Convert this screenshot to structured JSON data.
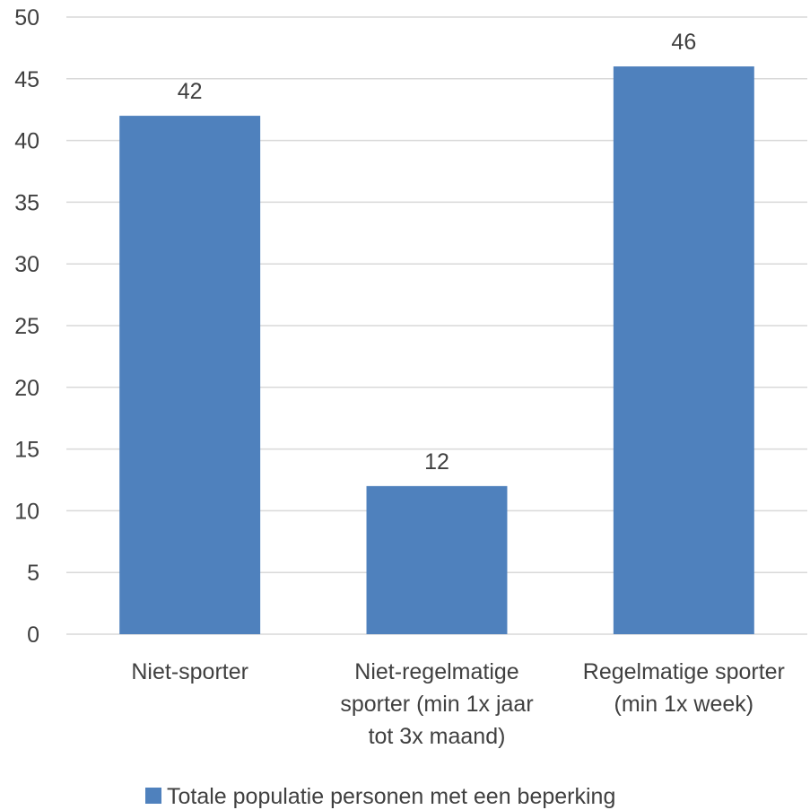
{
  "chart_data": {
    "type": "bar",
    "categories": [
      [
        "Niet-sporter"
      ],
      [
        "Niet-regelmatige",
        "sporter (min 1x jaar",
        "tot 3x maand)"
      ],
      [
        "Regelmatige sporter",
        "(min 1x week)"
      ]
    ],
    "series": [
      {
        "name": "Totale populatie personen met een beperking",
        "values": [
          42,
          12,
          46
        ],
        "color": "#4f81bd"
      }
    ],
    "data_labels": [
      "42",
      "12",
      "46"
    ],
    "ylim": [
      0,
      50
    ],
    "yticks": [
      "0",
      "5",
      "10",
      "15",
      "20",
      "25",
      "30",
      "35",
      "40",
      "45",
      "50"
    ],
    "grid": true,
    "legend": "bottom"
  }
}
